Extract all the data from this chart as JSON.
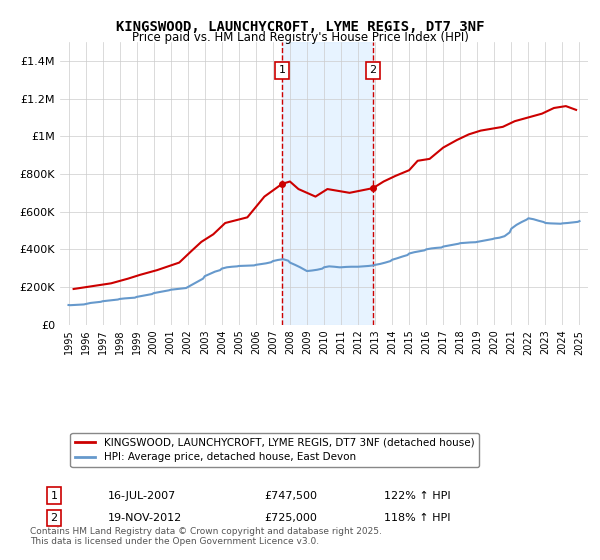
{
  "title": "KINGSWOOD, LAUNCHYCROFT, LYME REGIS, DT7 3NF",
  "subtitle": "Price paid vs. HM Land Registry's House Price Index (HPI)",
  "legend_line1": "KINGSWOOD, LAUNCHYCROFT, LYME REGIS, DT7 3NF (detached house)",
  "legend_line2": "HPI: Average price, detached house, East Devon",
  "annotation1": {
    "num": "1",
    "date": "16-JUL-2007",
    "price": "£747,500",
    "pct": "122% ↑ HPI",
    "x_year": 2007.54
  },
  "annotation2": {
    "num": "2",
    "date": "19-NOV-2012",
    "price": "£725,000",
    "pct": "118% ↑ HPI",
    "x_year": 2012.88
  },
  "footnote": "Contains HM Land Registry data © Crown copyright and database right 2025.\nThis data is licensed under the Open Government Licence v3.0.",
  "red_color": "#cc0000",
  "blue_color": "#6699cc",
  "shaded_region": [
    2007.54,
    2012.88
  ],
  "ylim": [
    0,
    1500000
  ],
  "xlim": [
    1994.5,
    2025.5
  ],
  "yticks": [
    0,
    200000,
    400000,
    600000,
    800000,
    1000000,
    1200000,
    1400000
  ],
  "ytick_labels": [
    "£0",
    "£200K",
    "£400K",
    "£600K",
    "£800K",
    "£1M",
    "£1.2M",
    "£1.4M"
  ],
  "xticks": [
    1995,
    1996,
    1997,
    1998,
    1999,
    2000,
    2001,
    2002,
    2003,
    2004,
    2005,
    2006,
    2007,
    2008,
    2009,
    2010,
    2011,
    2012,
    2013,
    2014,
    2015,
    2016,
    2017,
    2018,
    2019,
    2020,
    2021,
    2022,
    2023,
    2024,
    2025
  ],
  "hpi_data": {
    "years": [
      1995.0,
      1995.1,
      1995.2,
      1995.3,
      1995.4,
      1995.5,
      1995.6,
      1995.7,
      1995.8,
      1995.9,
      1996.0,
      1996.1,
      1996.2,
      1996.3,
      1996.5,
      1996.7,
      1996.9,
      1997.0,
      1997.3,
      1997.6,
      1997.9,
      1998.0,
      1998.3,
      1998.6,
      1998.9,
      1999.0,
      1999.3,
      1999.6,
      1999.9,
      2000.0,
      2000.3,
      2000.6,
      2000.9,
      2001.0,
      2001.3,
      2001.6,
      2001.9,
      2002.0,
      2002.3,
      2002.6,
      2002.9,
      2003.0,
      2003.3,
      2003.6,
      2003.9,
      2004.0,
      2004.3,
      2004.6,
      2004.9,
      2005.0,
      2005.3,
      2005.6,
      2005.9,
      2006.0,
      2006.3,
      2006.6,
      2006.9,
      2007.0,
      2007.3,
      2007.6,
      2007.9,
      2008.0,
      2008.3,
      2008.6,
      2008.9,
      2009.0,
      2009.3,
      2009.6,
      2009.9,
      2010.0,
      2010.3,
      2010.6,
      2010.9,
      2011.0,
      2011.3,
      2011.6,
      2011.9,
      2012.0,
      2012.3,
      2012.6,
      2012.9,
      2013.0,
      2013.3,
      2013.6,
      2013.9,
      2014.0,
      2014.3,
      2014.6,
      2014.9,
      2015.0,
      2015.3,
      2015.6,
      2015.9,
      2016.0,
      2016.3,
      2016.6,
      2016.9,
      2017.0,
      2017.3,
      2017.6,
      2017.9,
      2018.0,
      2018.3,
      2018.6,
      2018.9,
      2019.0,
      2019.3,
      2019.6,
      2019.9,
      2020.0,
      2020.3,
      2020.6,
      2020.9,
      2021.0,
      2021.3,
      2021.6,
      2021.9,
      2022.0,
      2022.3,
      2022.6,
      2022.9,
      2023.0,
      2023.3,
      2023.6,
      2023.9,
      2024.0,
      2024.3,
      2024.6,
      2024.9,
      2025.0
    ],
    "values": [
      105000,
      104000,
      104500,
      105000,
      105500,
      106000,
      106500,
      107000,
      107500,
      108000,
      110000,
      112000,
      114000,
      116000,
      118000,
      120000,
      122000,
      125000,
      128000,
      131000,
      134000,
      137000,
      140000,
      142000,
      144000,
      148000,
      153000,
      158000,
      163000,
      168000,
      173000,
      178000,
      183000,
      186000,
      189000,
      192000,
      195000,
      200000,
      215000,
      230000,
      245000,
      258000,
      270000,
      282000,
      290000,
      298000,
      305000,
      308000,
      310000,
      312000,
      313000,
      314000,
      315000,
      318000,
      322000,
      326000,
      332000,
      338000,
      344000,
      348000,
      340000,
      330000,
      318000,
      305000,
      290000,
      285000,
      288000,
      292000,
      298000,
      305000,
      310000,
      308000,
      305000,
      305000,
      307000,
      308000,
      308000,
      308000,
      310000,
      312000,
      315000,
      318000,
      323000,
      330000,
      338000,
      345000,
      353000,
      362000,
      370000,
      378000,
      385000,
      390000,
      395000,
      400000,
      405000,
      408000,
      410000,
      415000,
      420000,
      425000,
      430000,
      433000,
      435000,
      437000,
      438000,
      440000,
      445000,
      450000,
      455000,
      458000,
      462000,
      470000,
      490000,
      510000,
      530000,
      545000,
      558000,
      565000,
      560000,
      552000,
      545000,
      540000,
      538000,
      537000,
      536000,
      538000,
      540000,
      543000,
      546000,
      550000
    ]
  },
  "house_data": {
    "years": [
      1995.3,
      1997.5,
      1998.5,
      1999.2,
      2000.2,
      2001.5,
      2002.2,
      2002.8,
      2003.5,
      2004.2,
      2005.5,
      2006.5,
      2007.54,
      2008.0,
      2008.5,
      2009.5,
      2010.2,
      2011.5,
      2012.88,
      2013.5,
      2014.2,
      2015.0,
      2015.5,
      2016.2,
      2017.0,
      2017.8,
      2018.5,
      2019.2,
      2020.5,
      2021.2,
      2022.0,
      2022.8,
      2023.5,
      2024.2,
      2024.8
    ],
    "values": [
      190000,
      220000,
      245000,
      265000,
      290000,
      330000,
      390000,
      440000,
      480000,
      540000,
      570000,
      680000,
      747500,
      760000,
      720000,
      680000,
      720000,
      700000,
      725000,
      760000,
      790000,
      820000,
      870000,
      880000,
      940000,
      980000,
      1010000,
      1030000,
      1050000,
      1080000,
      1100000,
      1120000,
      1150000,
      1160000,
      1140000
    ]
  }
}
